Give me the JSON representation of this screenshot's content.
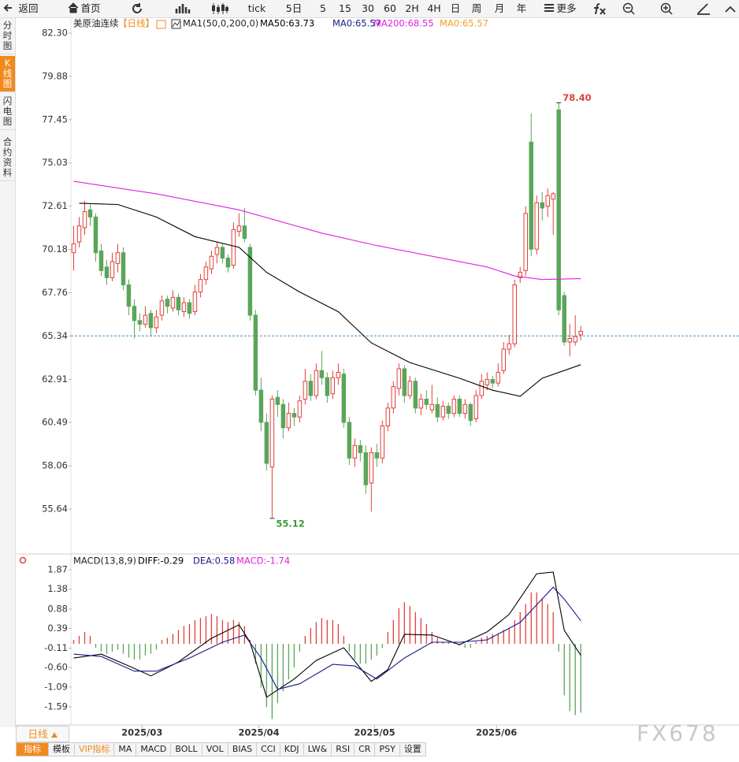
{
  "toolbar": [
    "返回",
    "首页",
    "tick",
    "5日",
    "5",
    "15",
    "30",
    "60",
    "2H",
    "4H",
    "日",
    "周",
    "月",
    "年",
    "更多"
  ],
  "sidebar": [
    "分时图",
    "K线图",
    "闪电图",
    "合约资料"
  ],
  "sidebar_active": 1,
  "period_button": "日线",
  "tabs": [
    "指标",
    "模板",
    "VIP指标",
    "MA",
    "MACD",
    "BOLL",
    "VOL",
    "BIAS",
    "CCI",
    "KDJ",
    "LW&",
    "RSI",
    "CR",
    "PSY",
    "设置"
  ],
  "watermark": "FX678",
  "chart_data": [
    {
      "type": "candlestick",
      "title": "美原油连续",
      "period": "【日线】",
      "indicator": "MA1(50,0,200,0)",
      "legend": [
        {
          "label": "MA50:63.73",
          "color": "#000000"
        },
        {
          "label": "MA0:65.57",
          "color": "#1a1a8c"
        },
        {
          "label": "MA200:68.55",
          "color": "#e020e0"
        },
        {
          "label": "MA0:65.57",
          "color": "#f0a020"
        }
      ],
      "up_color": "#e0403b",
      "down_color": "#5aa55a",
      "ohlc": [
        [
          70.0,
          71.5,
          69.0,
          70.5
        ],
        [
          70.6,
          72.0,
          70.3,
          71.5
        ],
        [
          71.4,
          72.9,
          71.0,
          72.3
        ],
        [
          72.4,
          72.7,
          71.5,
          72.0
        ],
        [
          72.0,
          72.2,
          69.5,
          70.0
        ],
        [
          70.1,
          70.5,
          68.7,
          69.0
        ],
        [
          69.2,
          69.6,
          68.2,
          68.6
        ],
        [
          68.6,
          70.0,
          68.4,
          69.5
        ],
        [
          69.4,
          70.5,
          68.9,
          70.0
        ],
        [
          70.0,
          70.3,
          67.9,
          68.2
        ],
        [
          68.2,
          68.5,
          66.5,
          67.0
        ],
        [
          67.0,
          67.4,
          65.2,
          66.2
        ],
        [
          66.2,
          66.6,
          65.6,
          66.0
        ],
        [
          66.0,
          67.0,
          65.8,
          66.5
        ],
        [
          66.6,
          66.8,
          65.3,
          65.8
        ],
        [
          65.8,
          66.8,
          65.5,
          66.4
        ],
        [
          66.5,
          67.6,
          66.2,
          67.3
        ],
        [
          67.4,
          67.6,
          66.6,
          67.0
        ],
        [
          66.9,
          67.9,
          66.7,
          67.5
        ],
        [
          67.5,
          67.7,
          66.5,
          66.8
        ],
        [
          66.7,
          67.5,
          66.4,
          67.2
        ],
        [
          67.2,
          67.4,
          66.3,
          66.6
        ],
        [
          66.7,
          68.2,
          66.5,
          67.8
        ],
        [
          67.8,
          68.8,
          67.5,
          68.5
        ],
        [
          68.5,
          69.5,
          68.2,
          69.2
        ],
        [
          69.1,
          70.1,
          68.8,
          69.8
        ],
        [
          69.9,
          70.6,
          69.4,
          70.3
        ],
        [
          70.3,
          70.5,
          69.4,
          69.7
        ],
        [
          69.7,
          69.9,
          68.9,
          69.2
        ],
        [
          69.3,
          71.7,
          69.1,
          71.3
        ],
        [
          71.2,
          72.2,
          70.9,
          71.5
        ],
        [
          71.5,
          72.5,
          70.6,
          70.8
        ],
        [
          70.3,
          70.5,
          66.2,
          66.5
        ],
        [
          66.5,
          66.8,
          62.0,
          62.3
        ],
        [
          62.3,
          63.0,
          60.0,
          60.5
        ],
        [
          60.5,
          61.0,
          57.8,
          58.2
        ],
        [
          58.0,
          62.0,
          55.12,
          61.8
        ],
        [
          61.9,
          62.3,
          60.8,
          61.5
        ],
        [
          61.5,
          61.8,
          59.6,
          60.2
        ],
        [
          60.2,
          61.6,
          60.0,
          61.0
        ],
        [
          61.0,
          61.3,
          60.3,
          60.8
        ],
        [
          60.8,
          62.0,
          60.5,
          61.7
        ],
        [
          61.8,
          63.5,
          61.5,
          62.8
        ],
        [
          62.8,
          63.2,
          61.7,
          62.0
        ],
        [
          62.0,
          63.8,
          61.8,
          63.4
        ],
        [
          63.4,
          64.5,
          62.6,
          63.0
        ],
        [
          63.0,
          63.3,
          61.6,
          62.0
        ],
        [
          62.1,
          63.4,
          61.8,
          63.0
        ],
        [
          63.0,
          63.8,
          62.6,
          63.3
        ],
        [
          63.2,
          63.5,
          60.2,
          60.5
        ],
        [
          60.5,
          60.8,
          58.1,
          58.5
        ],
        [
          58.5,
          59.6,
          58.0,
          59.2
        ],
        [
          59.2,
          59.5,
          58.3,
          58.8
        ],
        [
          58.8,
          59.2,
          56.5,
          57.0
        ],
        [
          57.1,
          59.1,
          55.5,
          58.8
        ],
        [
          58.8,
          59.3,
          58.0,
          58.5
        ],
        [
          58.5,
          60.6,
          58.2,
          60.3
        ],
        [
          60.3,
          61.6,
          60.0,
          61.3
        ],
        [
          61.3,
          62.8,
          61.0,
          62.5
        ],
        [
          62.4,
          63.8,
          62.0,
          63.5
        ],
        [
          63.5,
          63.7,
          61.6,
          62.0
        ],
        [
          62.0,
          63.1,
          61.8,
          62.8
        ],
        [
          62.8,
          63.0,
          61.0,
          61.3
        ],
        [
          61.3,
          62.1,
          60.9,
          61.8
        ],
        [
          61.8,
          62.3,
          61.2,
          61.5
        ],
        [
          61.2,
          62.6,
          61.0,
          61.5
        ],
        [
          61.5,
          61.9,
          60.5,
          60.8
        ],
        [
          60.8,
          61.7,
          60.6,
          61.4
        ],
        [
          61.4,
          61.6,
          60.7,
          61.0
        ],
        [
          61.0,
          62.0,
          60.8,
          61.8
        ],
        [
          61.8,
          62.0,
          60.8,
          61.0
        ],
        [
          61.0,
          61.8,
          60.7,
          61.5
        ],
        [
          61.5,
          61.6,
          60.3,
          60.6
        ],
        [
          60.7,
          62.3,
          60.5,
          62.0
        ],
        [
          62.0,
          63.2,
          61.8,
          62.8
        ],
        [
          62.6,
          63.3,
          62.3,
          62.9
        ],
        [
          62.9,
          63.1,
          62.4,
          62.7
        ],
        [
          62.7,
          63.8,
          62.5,
          63.3
        ],
        [
          63.4,
          65.0,
          63.2,
          64.6
        ],
        [
          64.6,
          65.4,
          64.3,
          64.9
        ],
        [
          64.9,
          68.5,
          64.7,
          68.2
        ],
        [
          68.6,
          69.2,
          68.3,
          68.9
        ],
        [
          69.0,
          72.6,
          68.7,
          72.2
        ],
        [
          76.2,
          77.8,
          69.8,
          70.2
        ],
        [
          70.2,
          73.2,
          69.9,
          72.8
        ],
        [
          72.8,
          73.4,
          71.8,
          72.5
        ],
        [
          72.6,
          73.6,
          72.0,
          73.2
        ],
        [
          73.0,
          73.4,
          71.0,
          73.3
        ],
        [
          78.0,
          78.4,
          66.5,
          66.8
        ],
        [
          67.6,
          67.8,
          64.8,
          65.0
        ],
        [
          65.0,
          66.0,
          64.2,
          65.2
        ],
        [
          65.0,
          66.5,
          64.8,
          65.3
        ],
        [
          65.4,
          65.9,
          65.1,
          65.6
        ]
      ],
      "lines": [
        {
          "color": "#000000",
          "x": [
            1,
            8,
            15,
            22,
            30,
            35,
            41,
            48,
            54,
            61,
            70,
            76,
            81,
            85,
            92
          ],
          "values": [
            72.77,
            72.7,
            72.0,
            70.9,
            70.3,
            68.9,
            67.8,
            66.7,
            64.95,
            63.85,
            62.97,
            62.3,
            61.96,
            62.97,
            63.73
          ]
        },
        {
          "color": "#e020e0",
          "x": [
            0,
            15,
            30,
            45,
            55,
            65,
            75,
            80,
            85,
            92
          ],
          "values": [
            74.0,
            73.3,
            72.4,
            71.1,
            70.4,
            69.8,
            69.2,
            68.7,
            68.5,
            68.55
          ]
        }
      ],
      "last_price": 65.34,
      "annotations": [
        {
          "x": 88,
          "value": 78.4,
          "label": "78.40",
          "color": "#d9453d"
        },
        {
          "x": 36,
          "value": 55.12,
          "label": "55.12",
          "color": "#3a9a3a"
        }
      ],
      "xlim": [
        -0.5,
        120.7
      ],
      "ylim": [
        53.26,
        82.83
      ],
      "yticks": [
        {
          "value": 82.3,
          "label": "82.30"
        },
        79.88,
        77.45,
        75.03,
        72.61,
        70.18,
        67.76,
        65.34,
        62.91,
        60.49,
        58.06,
        55.64
      ]
    },
    {
      "type": "macd",
      "title": "MACD(13,8,9)",
      "legend": [
        {
          "label": "DIFF:-0.29",
          "color": "#000000"
        },
        {
          "label": "DEA:0.58",
          "color": "#1a1a8c"
        },
        {
          "label": "MACD:-1.74",
          "color": "#e020e0"
        }
      ],
      "up_color": "#e0403b",
      "down_color": "#5aa55a",
      "histogram": [
        0.1,
        0.2,
        0.3,
        0.2,
        -0.1,
        -0.2,
        -0.25,
        -0.2,
        -0.15,
        -0.25,
        -0.35,
        -0.4,
        -0.4,
        -0.3,
        -0.25,
        -0.15,
        0.1,
        0.15,
        0.25,
        0.35,
        0.45,
        0.5,
        0.6,
        0.65,
        0.7,
        0.75,
        0.7,
        0.6,
        0.55,
        0.6,
        0.55,
        0.45,
        0.1,
        -0.5,
        -1.1,
        -1.6,
        -1.9,
        -1.5,
        -1.2,
        -0.9,
        -0.6,
        -0.2,
        0.2,
        0.4,
        0.55,
        0.65,
        0.6,
        0.6,
        0.5,
        0.2,
        -0.2,
        -0.4,
        -0.5,
        -0.5,
        -0.4,
        -0.3,
        -0.1,
        0.3,
        0.6,
        0.9,
        1.05,
        0.95,
        0.8,
        0.65,
        0.5,
        0.3,
        0.15,
        0.05,
        0.05,
        0.05,
        -0.05,
        -0.1,
        -0.1,
        0.05,
        0.15,
        0.2,
        0.25,
        0.25,
        0.35,
        0.4,
        0.6,
        0.8,
        1.0,
        1.3,
        1.3,
        1.15,
        1.0,
        0.8,
        -0.2,
        -1.3,
        -1.7,
        -1.8,
        -1.74
      ],
      "lines": [
        {
          "color": "#000000",
          "x": [
            0,
            5,
            10,
            14,
            19,
            25,
            30,
            32,
            35,
            40,
            44,
            49,
            54,
            57,
            60,
            65,
            70,
            75,
            79,
            84,
            87,
            89,
            92
          ],
          "values": [
            -0.36,
            -0.26,
            -0.56,
            -0.81,
            -0.46,
            0.14,
            0.48,
            0.04,
            -1.35,
            -0.89,
            -0.42,
            -0.1,
            -0.95,
            -0.65,
            0.24,
            0.22,
            -0.02,
            0.3,
            0.74,
            1.77,
            1.81,
            0.34,
            -0.29
          ]
        },
        {
          "color": "#1a1a8c",
          "x": [
            0,
            5,
            11,
            15,
            21,
            27,
            31,
            34,
            37,
            41,
            47,
            51,
            55,
            60,
            65,
            70,
            75,
            81,
            87,
            89,
            92
          ],
          "values": [
            -0.26,
            -0.32,
            -0.69,
            -0.69,
            -0.36,
            0.04,
            0.22,
            -0.36,
            -1.15,
            -1.01,
            -0.52,
            -0.56,
            -0.89,
            -0.36,
            0.04,
            0.04,
            0.1,
            0.54,
            1.43,
            1.13,
            0.58
          ]
        }
      ],
      "xlim": [
        -0.5,
        120.7
      ],
      "ylim": [
        -2.01,
        1.97
      ],
      "yticks": [
        1.87,
        1.38,
        0.88,
        0.39,
        -0.11,
        {
          "value": -0.6,
          "label": "-0.60"
        },
        -1.09,
        -1.59
      ],
      "xticks": [
        {
          "value": 12.4,
          "label": "2025/03"
        },
        {
          "value": 33.6,
          "label": "2025/04"
        },
        {
          "value": 54.6,
          "label": "2025/05"
        },
        {
          "value": 76.7,
          "label": "2025/06"
        }
      ]
    }
  ]
}
